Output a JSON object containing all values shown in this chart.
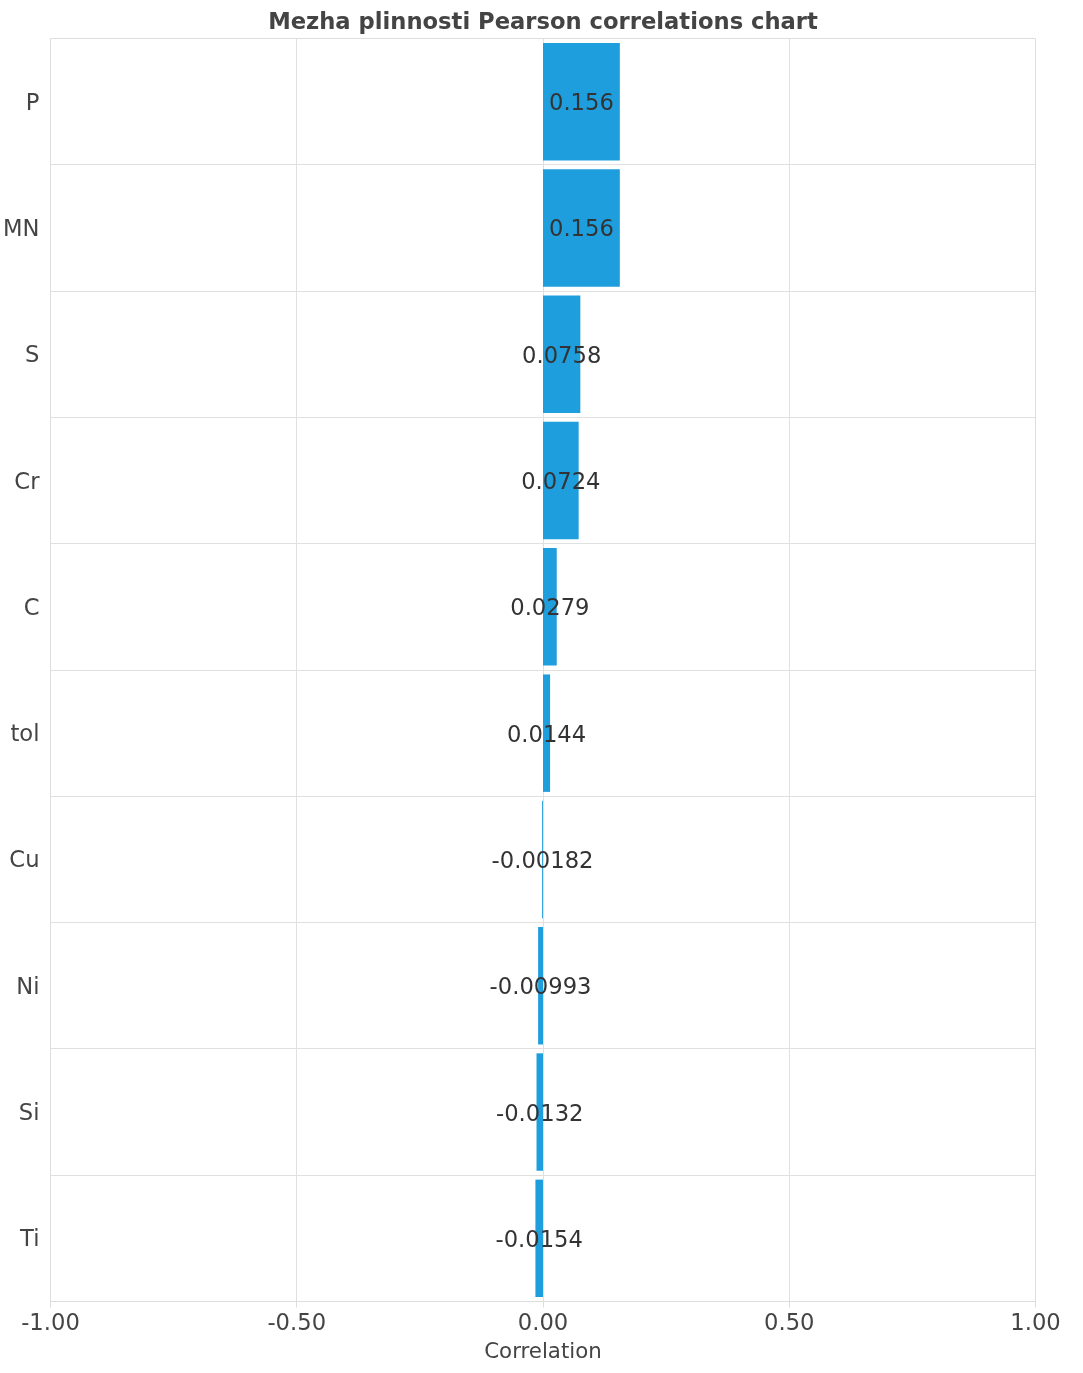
{
  "chart_data": {
    "type": "bar",
    "orientation": "horizontal",
    "title": "Mezha plinnosti Pearson correlations chart",
    "xlabel": "Correlation",
    "categories": [
      "P",
      "MN",
      "S",
      "Cr",
      "C",
      "tol",
      "Cu",
      "Ni",
      "Si",
      "Ti"
    ],
    "values": [
      0.156,
      0.156,
      0.0758,
      0.0724,
      0.0279,
      0.0144,
      -0.00182,
      -0.00993,
      -0.0132,
      -0.0154
    ],
    "color": "#1f9ede",
    "data_labels": true,
    "grid": true,
    "xlim": [
      -1,
      1
    ],
    "xticks": [
      {
        "value": -1,
        "label": "-1.00"
      },
      {
        "value": -0.5,
        "label": "-0.50"
      },
      {
        "value": 0,
        "label": "0.00"
      },
      {
        "value": 0.5,
        "label": "0.50"
      },
      {
        "value": 1,
        "label": "1.00"
      }
    ]
  }
}
